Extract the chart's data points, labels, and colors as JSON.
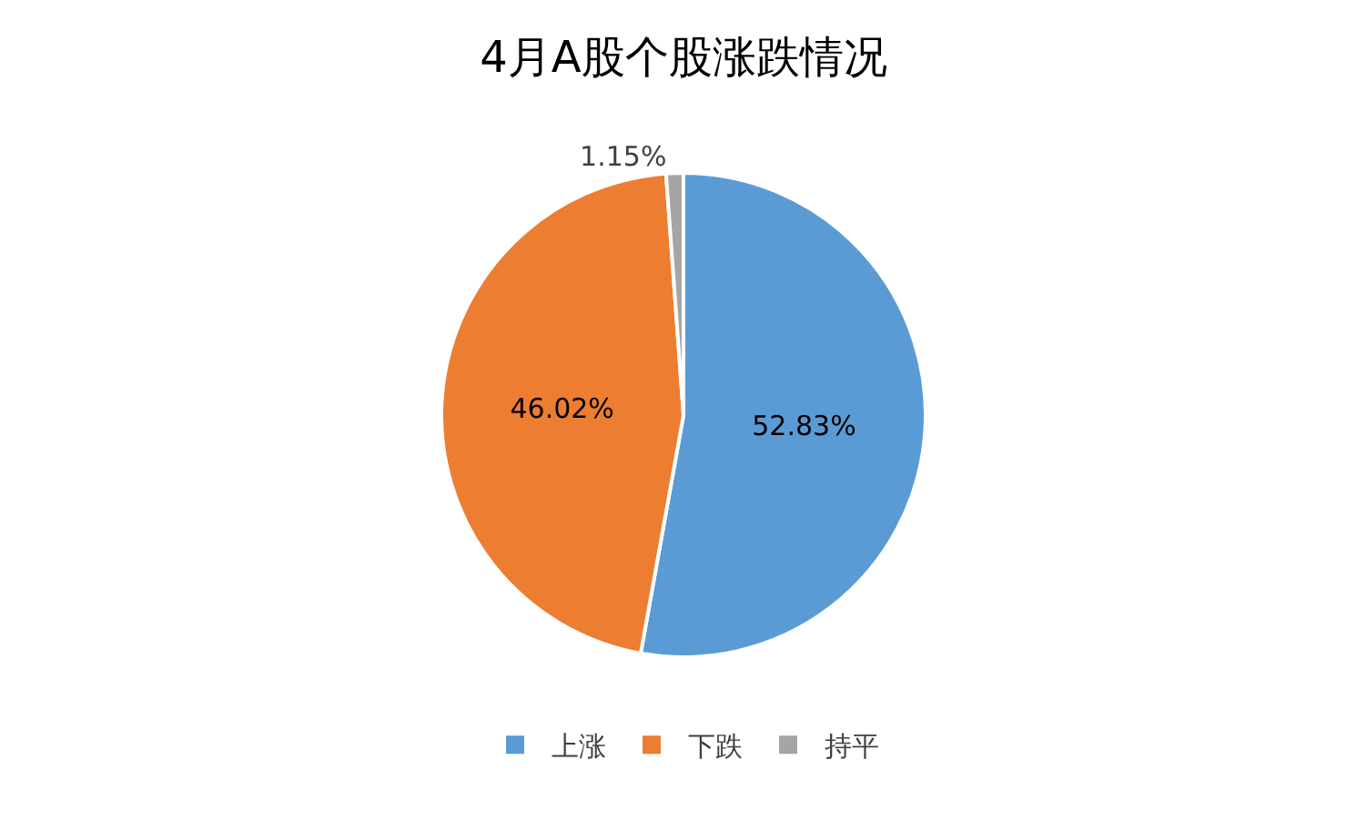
{
  "chart_data": {
    "type": "pie",
    "title": "4月A股个股涨跌情况",
    "categories": [
      "上涨",
      "下跌",
      "持平"
    ],
    "values": [
      52.83,
      46.02,
      1.15
    ],
    "value_labels": [
      "52.83%",
      "46.02%",
      "1.15%"
    ],
    "colors": [
      "#5b9bd5",
      "#ed7d31",
      "#a5a5a5"
    ],
    "legend": "bottom"
  }
}
